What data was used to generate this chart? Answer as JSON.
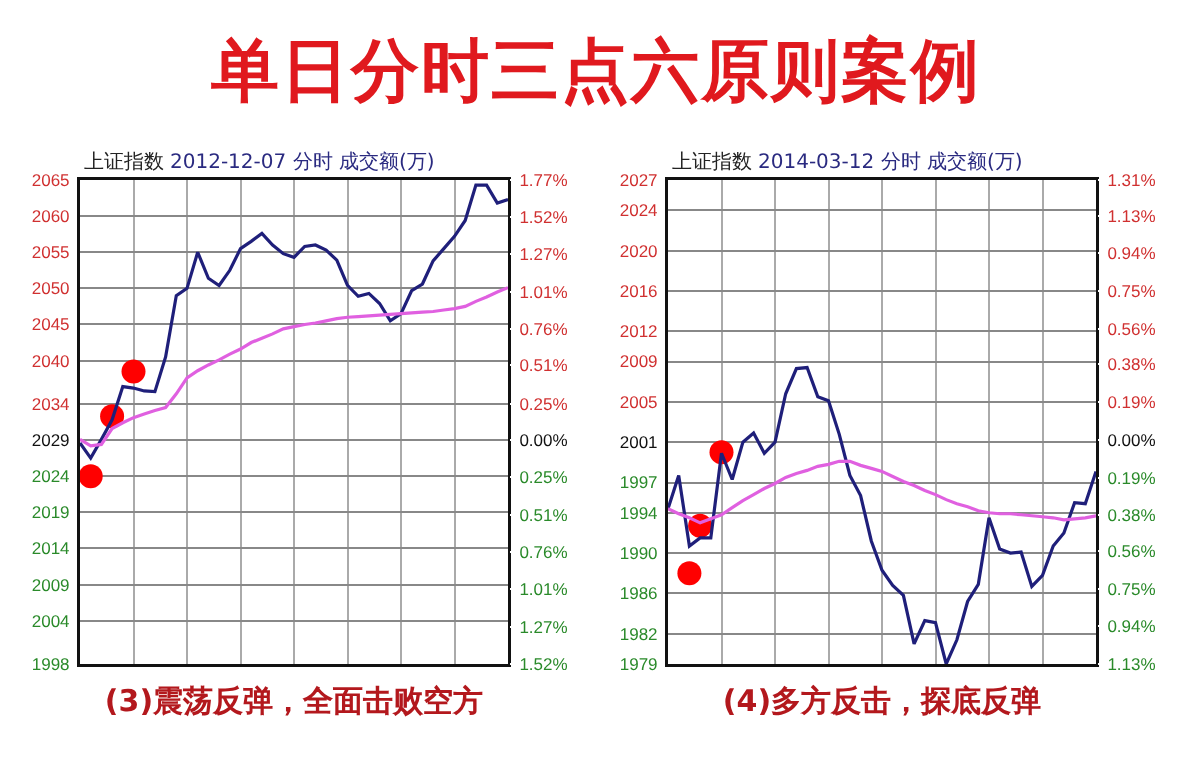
{
  "chart_data": [
    {
      "type": "line",
      "title": "单日分时三点六原则案例",
      "xlabel": "(3)震荡反弹，全面击败空方",
      "annotations": [
        "上证指数",
        "2012-12-07 分时 成交额(万)"
      ],
      "categories": [
        null,
        null,
        null,
        null,
        null,
        null,
        null,
        null,
        null,
        null,
        null,
        null,
        null,
        null,
        null,
        null,
        null,
        null,
        null,
        null,
        null,
        null,
        null,
        null,
        null,
        null,
        null,
        null,
        null,
        null,
        null,
        null,
        null,
        null,
        null,
        null,
        null,
        null,
        null,
        null,
        null
      ],
      "ylim": [
        1998,
        2065
      ],
      "yticks": [
        1998,
        2004,
        2009,
        2014,
        2019,
        2024,
        2029,
        2034,
        2040,
        2045,
        2050,
        2055,
        2060,
        2065
      ],
      "y2lim": [
        -1.52,
        1.77
      ],
      "y2ticks": [
        {
          "value": -1.52,
          "label": "1.52%"
        },
        {
          "value": -1.27,
          "label": "1.27%"
        },
        {
          "value": -1.01,
          "label": "1.01%"
        },
        {
          "value": -0.76,
          "label": "0.76%"
        },
        {
          "value": -0.51,
          "label": "0.51%"
        },
        {
          "value": -0.25,
          "label": "0.25%"
        },
        {
          "value": 0,
          "label": "0.00%"
        },
        {
          "value": 0.25,
          "label": "0.25%"
        },
        {
          "value": 0.51,
          "label": "0.51%"
        },
        {
          "value": 0.76,
          "label": "0.76%"
        },
        {
          "value": 1.01,
          "label": "1.01%"
        },
        {
          "value": 1.27,
          "label": "1.27%"
        },
        {
          "value": 1.52,
          "label": "1.52%"
        },
        {
          "value": 1.77,
          "label": "1.77%"
        }
      ],
      "grid": true,
      "tick_labels": "y",
      "line_style": "solid",
      "series": [
        {
          "type": "line",
          "color": "#1f1f7a",
          "values": [
            2028.6,
            2026.5,
            2029.1,
            2031.8,
            2036.4,
            2036.2,
            2035.8,
            2035.7,
            2040.5,
            2049.0,
            2050.0,
            2055.0,
            2051.4,
            2050.4,
            2052.5,
            2055.5,
            2056.5,
            2057.6,
            2056.0,
            2054.8,
            2054.3,
            2055.8,
            2056.0,
            2055.3,
            2053.9,
            2050.4,
            2048.9,
            2049.3,
            2047.9,
            2045.5,
            2046.5,
            2049.7,
            2050.6,
            2053.8,
            2055.5,
            2057.2,
            2059.4,
            2064.3,
            2064.3,
            2061.8,
            2062.3
          ]
        },
        {
          "type": "line",
          "color": "#e060e0",
          "values": [
            2029.1,
            2028.2,
            2028.4,
            2030.6,
            2031.4,
            2032.1,
            2032.6,
            2033.1,
            2033.5,
            2035.4,
            2037.6,
            2038.6,
            2039.4,
            2040.1,
            2040.9,
            2041.6,
            2042.5,
            2043.1,
            2043.7,
            2044.4,
            2044.7,
            2045.0,
            2045.2,
            2045.5,
            2045.8,
            2046.0,
            2046.1,
            2046.2,
            2046.3,
            2046.4,
            2046.5,
            2046.6,
            2046.7,
            2046.8,
            2047.0,
            2047.2,
            2047.5,
            2048.2,
            2048.8,
            2049.5,
            2050.1
          ]
        },
        {
          "type": "scatter",
          "marker": "circle",
          "color": "#ff0000",
          "values": [
            null,
            2024.0,
            null,
            2032.3,
            null,
            2038.5,
            null,
            null,
            null,
            null,
            null,
            null,
            null,
            null,
            null,
            null,
            null,
            null,
            null,
            null,
            null,
            null,
            null,
            null,
            null,
            null,
            null,
            null,
            null,
            null,
            null,
            null,
            null,
            null,
            null,
            null,
            null,
            null,
            null,
            null,
            null
          ]
        }
      ]
    },
    {
      "type": "line",
      "xlabel": "(4)多方反击，探底反弹",
      "annotations": [
        "上证指数",
        "2014-03-12 分时 成交额(万)"
      ],
      "categories": [
        null,
        null,
        null,
        null,
        null,
        null,
        null,
        null,
        null,
        null,
        null,
        null,
        null,
        null,
        null,
        null,
        null,
        null,
        null,
        null,
        null,
        null,
        null,
        null,
        null,
        null,
        null,
        null,
        null,
        null,
        null,
        null,
        null,
        null,
        null,
        null,
        null,
        null,
        null,
        null,
        null
      ],
      "ylim": [
        1979,
        2027
      ],
      "yticks": [
        1979,
        1982,
        1986,
        1990,
        1994,
        1997,
        2001,
        2005,
        2009,
        2012,
        2016,
        2020,
        2024,
        2027
      ],
      "y2lim": [
        -1.13,
        1.31
      ],
      "y2ticks": [
        {
          "value": -1.13,
          "label": "1.13%"
        },
        {
          "value": -0.94,
          "label": "0.94%"
        },
        {
          "value": -0.75,
          "label": "0.75%"
        },
        {
          "value": -0.56,
          "label": "0.56%"
        },
        {
          "value": -0.38,
          "label": "0.38%"
        },
        {
          "value": -0.19,
          "label": "0.19%"
        },
        {
          "value": 0,
          "label": "0.00%"
        },
        {
          "value": 0.19,
          "label": "0.19%"
        },
        {
          "value": 0.38,
          "label": "0.38%"
        },
        {
          "value": 0.56,
          "label": "0.56%"
        },
        {
          "value": 0.75,
          "label": "0.75%"
        },
        {
          "value": 0.94,
          "label": "0.94%"
        },
        {
          "value": 1.13,
          "label": "1.13%"
        },
        {
          "value": 1.31,
          "label": "1.31%"
        }
      ],
      "grid": true,
      "tick_labels": "y",
      "line_style": "solid",
      "series": [
        {
          "type": "line",
          "color": "#1f1f7a",
          "values": [
            1994.4,
            1997.7,
            1990.7,
            1991.5,
            1991.5,
            1999.9,
            1997.3,
            2001.0,
            2001.9,
            1999.9,
            2001.0,
            2005.8,
            2008.3,
            2008.4,
            2005.5,
            2005.1,
            2001.8,
            1997.7,
            1995.7,
            1991.2,
            1988.3,
            1986.8,
            1985.8,
            1981.0,
            1983.3,
            1983.1,
            1979.0,
            1981.4,
            1985.2,
            1986.9,
            1993.5,
            1990.4,
            1990.0,
            1990.1,
            1986.7,
            1987.8,
            1990.7,
            1992.0,
            1995.0,
            1994.9,
            1998.1
          ]
        },
        {
          "type": "line",
          "color": "#e060e0",
          "values": [
            1994.4,
            1993.9,
            1993.5,
            1993.0,
            1993.4,
            1993.8,
            1994.5,
            1995.2,
            1995.8,
            1996.4,
            1996.9,
            1997.5,
            1997.9,
            1998.2,
            1998.6,
            1998.8,
            1999.1,
            1999.1,
            1998.7,
            1998.4,
            1998.1,
            1997.6,
            1997.1,
            1996.7,
            1996.2,
            1995.8,
            1995.3,
            1994.9,
            1994.6,
            1994.2,
            1994.0,
            1993.9,
            1993.9,
            1993.8,
            1993.7,
            1993.6,
            1993.5,
            1993.3,
            1993.4,
            1993.5,
            1993.7
          ]
        },
        {
          "type": "scatter",
          "marker": "circle",
          "color": "#ff0000",
          "values": [
            null,
            null,
            1988.0,
            1992.7,
            null,
            2000.0,
            null,
            null,
            null,
            null,
            null,
            null,
            null,
            null,
            null,
            null,
            null,
            null,
            null,
            null,
            null,
            null,
            null,
            null,
            null,
            null,
            null,
            null,
            null,
            null,
            null,
            null,
            null,
            null,
            null,
            null,
            null,
            null,
            null,
            null,
            null
          ]
        }
      ]
    }
  ]
}
